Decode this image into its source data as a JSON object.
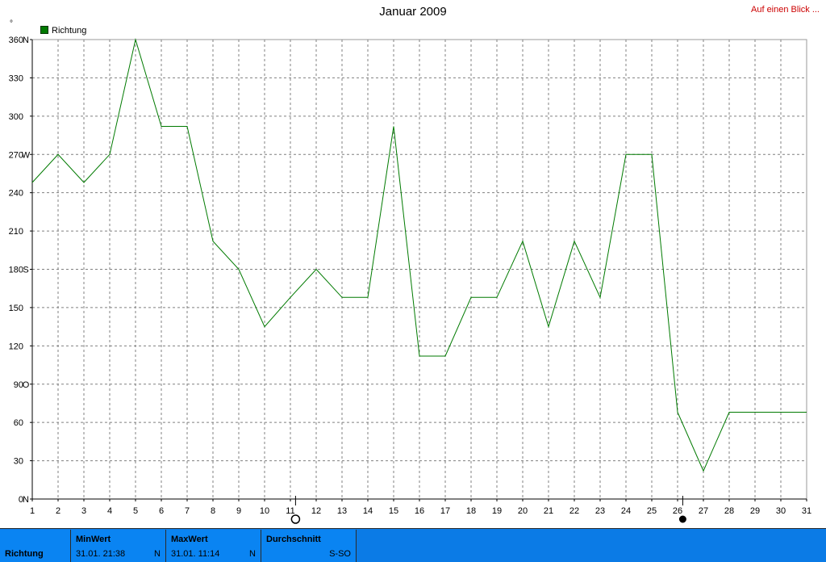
{
  "header": {
    "title": "Januar 2009",
    "link_label": "Auf einen Blick ..."
  },
  "chart_data": {
    "type": "line",
    "x": [
      1,
      2,
      3,
      4,
      5,
      6,
      7,
      8,
      9,
      10,
      11,
      12,
      13,
      14,
      15,
      16,
      17,
      18,
      19,
      20,
      21,
      22,
      23,
      24,
      25,
      26,
      27,
      28,
      29,
      30,
      31
    ],
    "series": [
      {
        "name": "Richtung",
        "color": "#007a00",
        "values": [
          248,
          270,
          248,
          270,
          360,
          292,
          292,
          202,
          180,
          135,
          158,
          180,
          158,
          158,
          292,
          112,
          112,
          158,
          158,
          202,
          135,
          202,
          158,
          270,
          270,
          68,
          22,
          68,
          68,
          68,
          68
        ]
      }
    ],
    "ylim": [
      0,
      360
    ],
    "xlim": [
      1,
      31
    ],
    "unit_label": "°",
    "y_ticks": [
      {
        "value": 0,
        "label": "0",
        "dir": "N"
      },
      {
        "value": 30,
        "label": "30",
        "dir": ""
      },
      {
        "value": 60,
        "label": "60",
        "dir": ""
      },
      {
        "value": 90,
        "label": "90",
        "dir": "O"
      },
      {
        "value": 120,
        "label": "120",
        "dir": ""
      },
      {
        "value": 150,
        "label": "150",
        "dir": ""
      },
      {
        "value": 180,
        "label": "180",
        "dir": "S"
      },
      {
        "value": 210,
        "label": "210",
        "dir": ""
      },
      {
        "value": 240,
        "label": "240",
        "dir": ""
      },
      {
        "value": 270,
        "label": "270",
        "dir": "W"
      },
      {
        "value": 300,
        "label": "300",
        "dir": ""
      },
      {
        "value": 330,
        "label": "330",
        "dir": ""
      },
      {
        "value": 360,
        "label": "360",
        "dir": "N"
      }
    ],
    "x_tick_labels": [
      "1",
      "2",
      "3",
      "4",
      "5",
      "6",
      "7",
      "8",
      "9",
      "10",
      "11",
      "12",
      "13",
      "14",
      "15",
      "16",
      "17",
      "18",
      "19",
      "20",
      "21",
      "22",
      "23",
      "24",
      "25",
      "26",
      "27",
      "28",
      "29",
      "30",
      "31"
    ],
    "moon_markers": [
      {
        "x": 11.2,
        "phase": "full"
      },
      {
        "x": 26.2,
        "phase": "new"
      }
    ],
    "grid": true,
    "legend": "top-left",
    "colors": {
      "line": "#007a00",
      "grid": "#808080",
      "axis": "#000000"
    }
  },
  "footer": {
    "series_label": "Richtung",
    "min": {
      "label": "MinWert",
      "value": "31.01.  21:38",
      "dir": "N"
    },
    "max": {
      "label": "MaxWert",
      "value": "31.01.  11:14",
      "dir": "N"
    },
    "avg": {
      "label": "Durchschnitt",
      "value": "",
      "dir": "S-SO"
    },
    "colors": {
      "bar": "#0b7be6",
      "cell": "#0a84f2"
    }
  }
}
